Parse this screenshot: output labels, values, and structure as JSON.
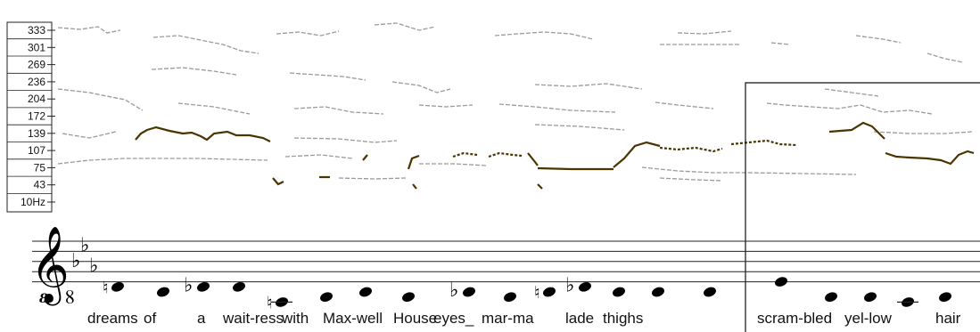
{
  "frequency_axis": {
    "unit_label": "10Hz",
    "ticks": [
      "333",
      "301",
      "269",
      "236",
      "204",
      "172",
      "139",
      "107",
      "75",
      "43",
      "10Hz"
    ]
  },
  "staff": {
    "clef": "treble-8vb",
    "clef_glyph": "𝄠",
    "clef_octave_mark": "8",
    "key_signature": [
      "flat",
      "flat",
      "flat"
    ],
    "flat_glyph": "♭",
    "natural_glyph": "♮"
  },
  "notes": [
    {
      "pos": 1,
      "acc": "natural"
    },
    {
      "pos": 0,
      "acc": ""
    },
    {
      "pos": 1,
      "acc": "flat"
    },
    {
      "pos": 1,
      "acc": ""
    },
    {
      "pos": -2,
      "acc": "natural"
    },
    {
      "pos": -1,
      "acc": ""
    },
    {
      "pos": 0,
      "acc": ""
    },
    {
      "pos": -1,
      "acc": ""
    },
    {
      "pos": 0,
      "acc": "flat"
    },
    {
      "pos": -1,
      "acc": ""
    },
    {
      "pos": 0,
      "acc": "natural"
    },
    {
      "pos": 1,
      "acc": "flat"
    },
    {
      "pos": 0,
      "acc": ""
    },
    {
      "pos": 0,
      "acc": ""
    },
    {
      "pos": 0,
      "acc": ""
    },
    {
      "pos": 2,
      "acc": ""
    },
    {
      "pos": -1,
      "acc": ""
    },
    {
      "pos": -1,
      "acc": ""
    },
    {
      "pos": -2,
      "acc": ""
    },
    {
      "pos": -1,
      "acc": ""
    }
  ],
  "lyrics": [
    "dreams",
    "of",
    "a",
    "wait-ress",
    "with",
    "Max-well",
    "House",
    "eyes_",
    "mar-ma",
    "lade",
    "thighs",
    "scram-bled",
    "yel-low",
    "hair"
  ]
}
